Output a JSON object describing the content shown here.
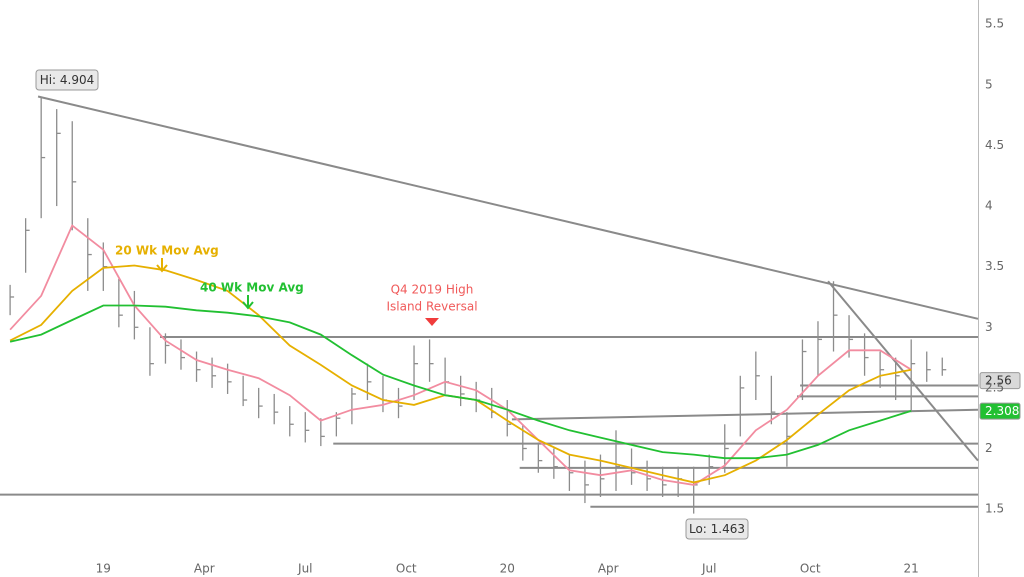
{
  "chart_data": {
    "type": "ohlc",
    "x": [
      -12,
      -10,
      -8,
      -6,
      -4,
      -2,
      0,
      2,
      4,
      6,
      8,
      10,
      12,
      14,
      16,
      18,
      20,
      22,
      24,
      26,
      28,
      30,
      32,
      34,
      36,
      38,
      40,
      42,
      44,
      46,
      48,
      50,
      52,
      54,
      56,
      58,
      60,
      62,
      64,
      66,
      68,
      70,
      72,
      74,
      76,
      78,
      80,
      82,
      84,
      86,
      88,
      90,
      92,
      94,
      96,
      98,
      100,
      102,
      104,
      106,
      108
    ],
    "high": [
      3.35,
      3.9,
      4.904,
      4.8,
      4.7,
      3.9,
      3.7,
      3.4,
      3.3,
      3.0,
      2.95,
      2.9,
      2.8,
      2.75,
      2.7,
      2.6,
      2.5,
      2.45,
      2.35,
      2.3,
      2.25,
      2.3,
      2.5,
      2.7,
      2.6,
      2.5,
      2.85,
      2.9,
      2.75,
      2.6,
      2.55,
      2.5,
      2.4,
      2.2,
      2.05,
      2.0,
      1.95,
      1.9,
      1.95,
      2.15,
      2.0,
      1.9,
      1.85,
      1.85,
      1.85,
      1.95,
      2.2,
      2.6,
      2.8,
      2.6,
      2.3,
      2.9,
      3.05,
      3.38,
      3.1,
      2.95,
      2.8,
      2.75,
      2.9,
      2.8,
      2.75
    ],
    "low": [
      3.1,
      3.45,
      3.9,
      4.0,
      3.8,
      3.3,
      3.3,
      3.0,
      2.9,
      2.6,
      2.7,
      2.65,
      2.55,
      2.5,
      2.45,
      2.35,
      2.25,
      2.2,
      2.1,
      2.05,
      2.02,
      2.1,
      2.2,
      2.4,
      2.3,
      2.25,
      2.4,
      2.55,
      2.45,
      2.35,
      2.3,
      2.25,
      2.1,
      1.9,
      1.8,
      1.75,
      1.65,
      1.55,
      1.6,
      1.65,
      1.7,
      1.65,
      1.6,
      1.6,
      1.463,
      1.7,
      1.8,
      2.1,
      2.4,
      2.2,
      1.85,
      2.4,
      2.6,
      2.8,
      2.75,
      2.6,
      2.5,
      2.4,
      2.3,
      2.55,
      2.6
    ],
    "close": [
      3.25,
      3.8,
      4.4,
      4.6,
      4.2,
      3.6,
      3.5,
      3.1,
      3.0,
      2.7,
      2.85,
      2.75,
      2.65,
      2.6,
      2.55,
      2.4,
      2.35,
      2.3,
      2.2,
      2.15,
      2.1,
      2.25,
      2.45,
      2.55,
      2.4,
      2.35,
      2.7,
      2.7,
      2.55,
      2.45,
      2.4,
      2.3,
      2.2,
      2.0,
      1.9,
      1.85,
      1.8,
      1.7,
      1.75,
      1.85,
      1.8,
      1.75,
      1.7,
      1.75,
      1.7,
      1.85,
      2.0,
      2.5,
      2.6,
      2.3,
      2.1,
      2.8,
      2.9,
      3.1,
      2.9,
      2.75,
      2.65,
      2.6,
      2.7,
      2.65,
      2.65
    ],
    "bar_color": "#8c8c8c",
    "series": [
      {
        "color": "#f28ca0",
        "x": [
          -12,
          -8,
          -4,
          0,
          4,
          8,
          12,
          16,
          20,
          24,
          28,
          32,
          36,
          40,
          44,
          48,
          52,
          56,
          60,
          64,
          68,
          72,
          76,
          80,
          84,
          88,
          92,
          96,
          100,
          104
        ],
        "values": [
          2.98,
          3.26,
          3.84,
          3.64,
          3.18,
          2.89,
          2.73,
          2.65,
          2.58,
          2.44,
          2.23,
          2.32,
          2.36,
          2.44,
          2.55,
          2.48,
          2.32,
          2.07,
          1.82,
          1.78,
          1.82,
          1.74,
          1.7,
          1.86,
          2.15,
          2.32,
          2.6,
          2.81,
          2.81,
          2.65
        ]
      },
      {
        "name": "20 Wk Mov Avg",
        "color": "#e6b000",
        "x": [
          -12,
          -8,
          -4,
          0,
          4,
          8,
          12,
          16,
          20,
          24,
          28,
          32,
          36,
          40,
          44,
          48,
          52,
          56,
          60,
          64,
          68,
          72,
          76,
          80,
          84,
          88,
          92,
          96,
          100,
          104
        ],
        "values": [
          2.89,
          3.02,
          3.3,
          3.49,
          3.51,
          3.47,
          3.39,
          3.3,
          3.1,
          2.85,
          2.69,
          2.52,
          2.4,
          2.36,
          2.44,
          2.4,
          2.23,
          2.07,
          1.95,
          1.9,
          1.84,
          1.78,
          1.72,
          1.78,
          1.9,
          2.07,
          2.28,
          2.48,
          2.6,
          2.65
        ]
      },
      {
        "name": "40 Wk Mov Avg",
        "color": "#22c032",
        "x": [
          -12,
          -8,
          -4,
          0,
          4,
          8,
          12,
          16,
          20,
          24,
          28,
          32,
          36,
          40,
          44,
          48,
          52,
          56,
          60,
          64,
          68,
          72,
          76,
          80,
          84,
          88,
          92,
          96,
          100,
          104
        ],
        "values": [
          2.88,
          2.94,
          3.06,
          3.18,
          3.18,
          3.17,
          3.14,
          3.12,
          3.09,
          3.04,
          2.94,
          2.77,
          2.61,
          2.52,
          2.44,
          2.4,
          2.32,
          2.23,
          2.15,
          2.09,
          2.03,
          1.97,
          1.95,
          1.92,
          1.92,
          1.95,
          2.03,
          2.15,
          2.23,
          2.31
        ]
      }
    ],
    "lines": [
      {
        "x": [
          -8.4,
          112.6
        ],
        "y": [
          4.904,
          3.07
        ]
      },
      {
        "x": [
          7.3,
          112.6
        ],
        "y": [
          2.92,
          2.92
        ]
      },
      {
        "x": [
          -13.3,
          112.6
        ],
        "y": [
          1.62,
          1.62
        ]
      },
      {
        "x": [
          62.7,
          112.6
        ],
        "y": [
          1.52,
          1.52
        ]
      },
      {
        "x": [
          29.6,
          112.6
        ],
        "y": [
          2.04,
          2.04
        ]
      },
      {
        "x": [
          53.6,
          112.6
        ],
        "y": [
          1.84,
          1.84
        ]
      },
      {
        "x": [
          52.6,
          112.6
        ],
        "y": [
          2.24,
          2.32
        ]
      },
      {
        "x": [
          89.7,
          112.6
        ],
        "y": [
          2.52,
          2.52
        ]
      },
      {
        "x": [
          89.3,
          112.6
        ],
        "y": [
          2.43,
          2.43
        ]
      },
      {
        "x": [
          93.3,
          112.6
        ],
        "y": [
          3.38,
          1.9
        ]
      }
    ],
    "line_color": "#8a8a8a",
    "annotations": [
      "Hi: 4.904",
      "Lo: 1.463",
      "Q4 2019 High",
      "Island Reversal"
    ],
    "price_tags": [
      {
        "value": 2.56,
        "color": "#d9d9d9"
      },
      {
        "value": 2.308,
        "color": "#22c032"
      }
    ],
    "xlim": [
      -13.3,
      112.6
    ],
    "xticks": [
      {
        "value": 0,
        "label": "19"
      },
      {
        "value": 13,
        "label": "Apr"
      },
      {
        "value": 26,
        "label": "Jul"
      },
      {
        "value": 39,
        "label": "Oct"
      },
      {
        "value": 52,
        "label": "20"
      },
      {
        "value": 65,
        "label": "Apr"
      },
      {
        "value": 78,
        "label": "Jul"
      },
      {
        "value": 91,
        "label": "Oct"
      },
      {
        "value": 104,
        "label": "21"
      }
    ],
    "ylim": [
      0.94,
      5.7
    ],
    "yticks": [
      1.5,
      2,
      2.5,
      3,
      3.5,
      4,
      4.5,
      5,
      5.5
    ]
  }
}
